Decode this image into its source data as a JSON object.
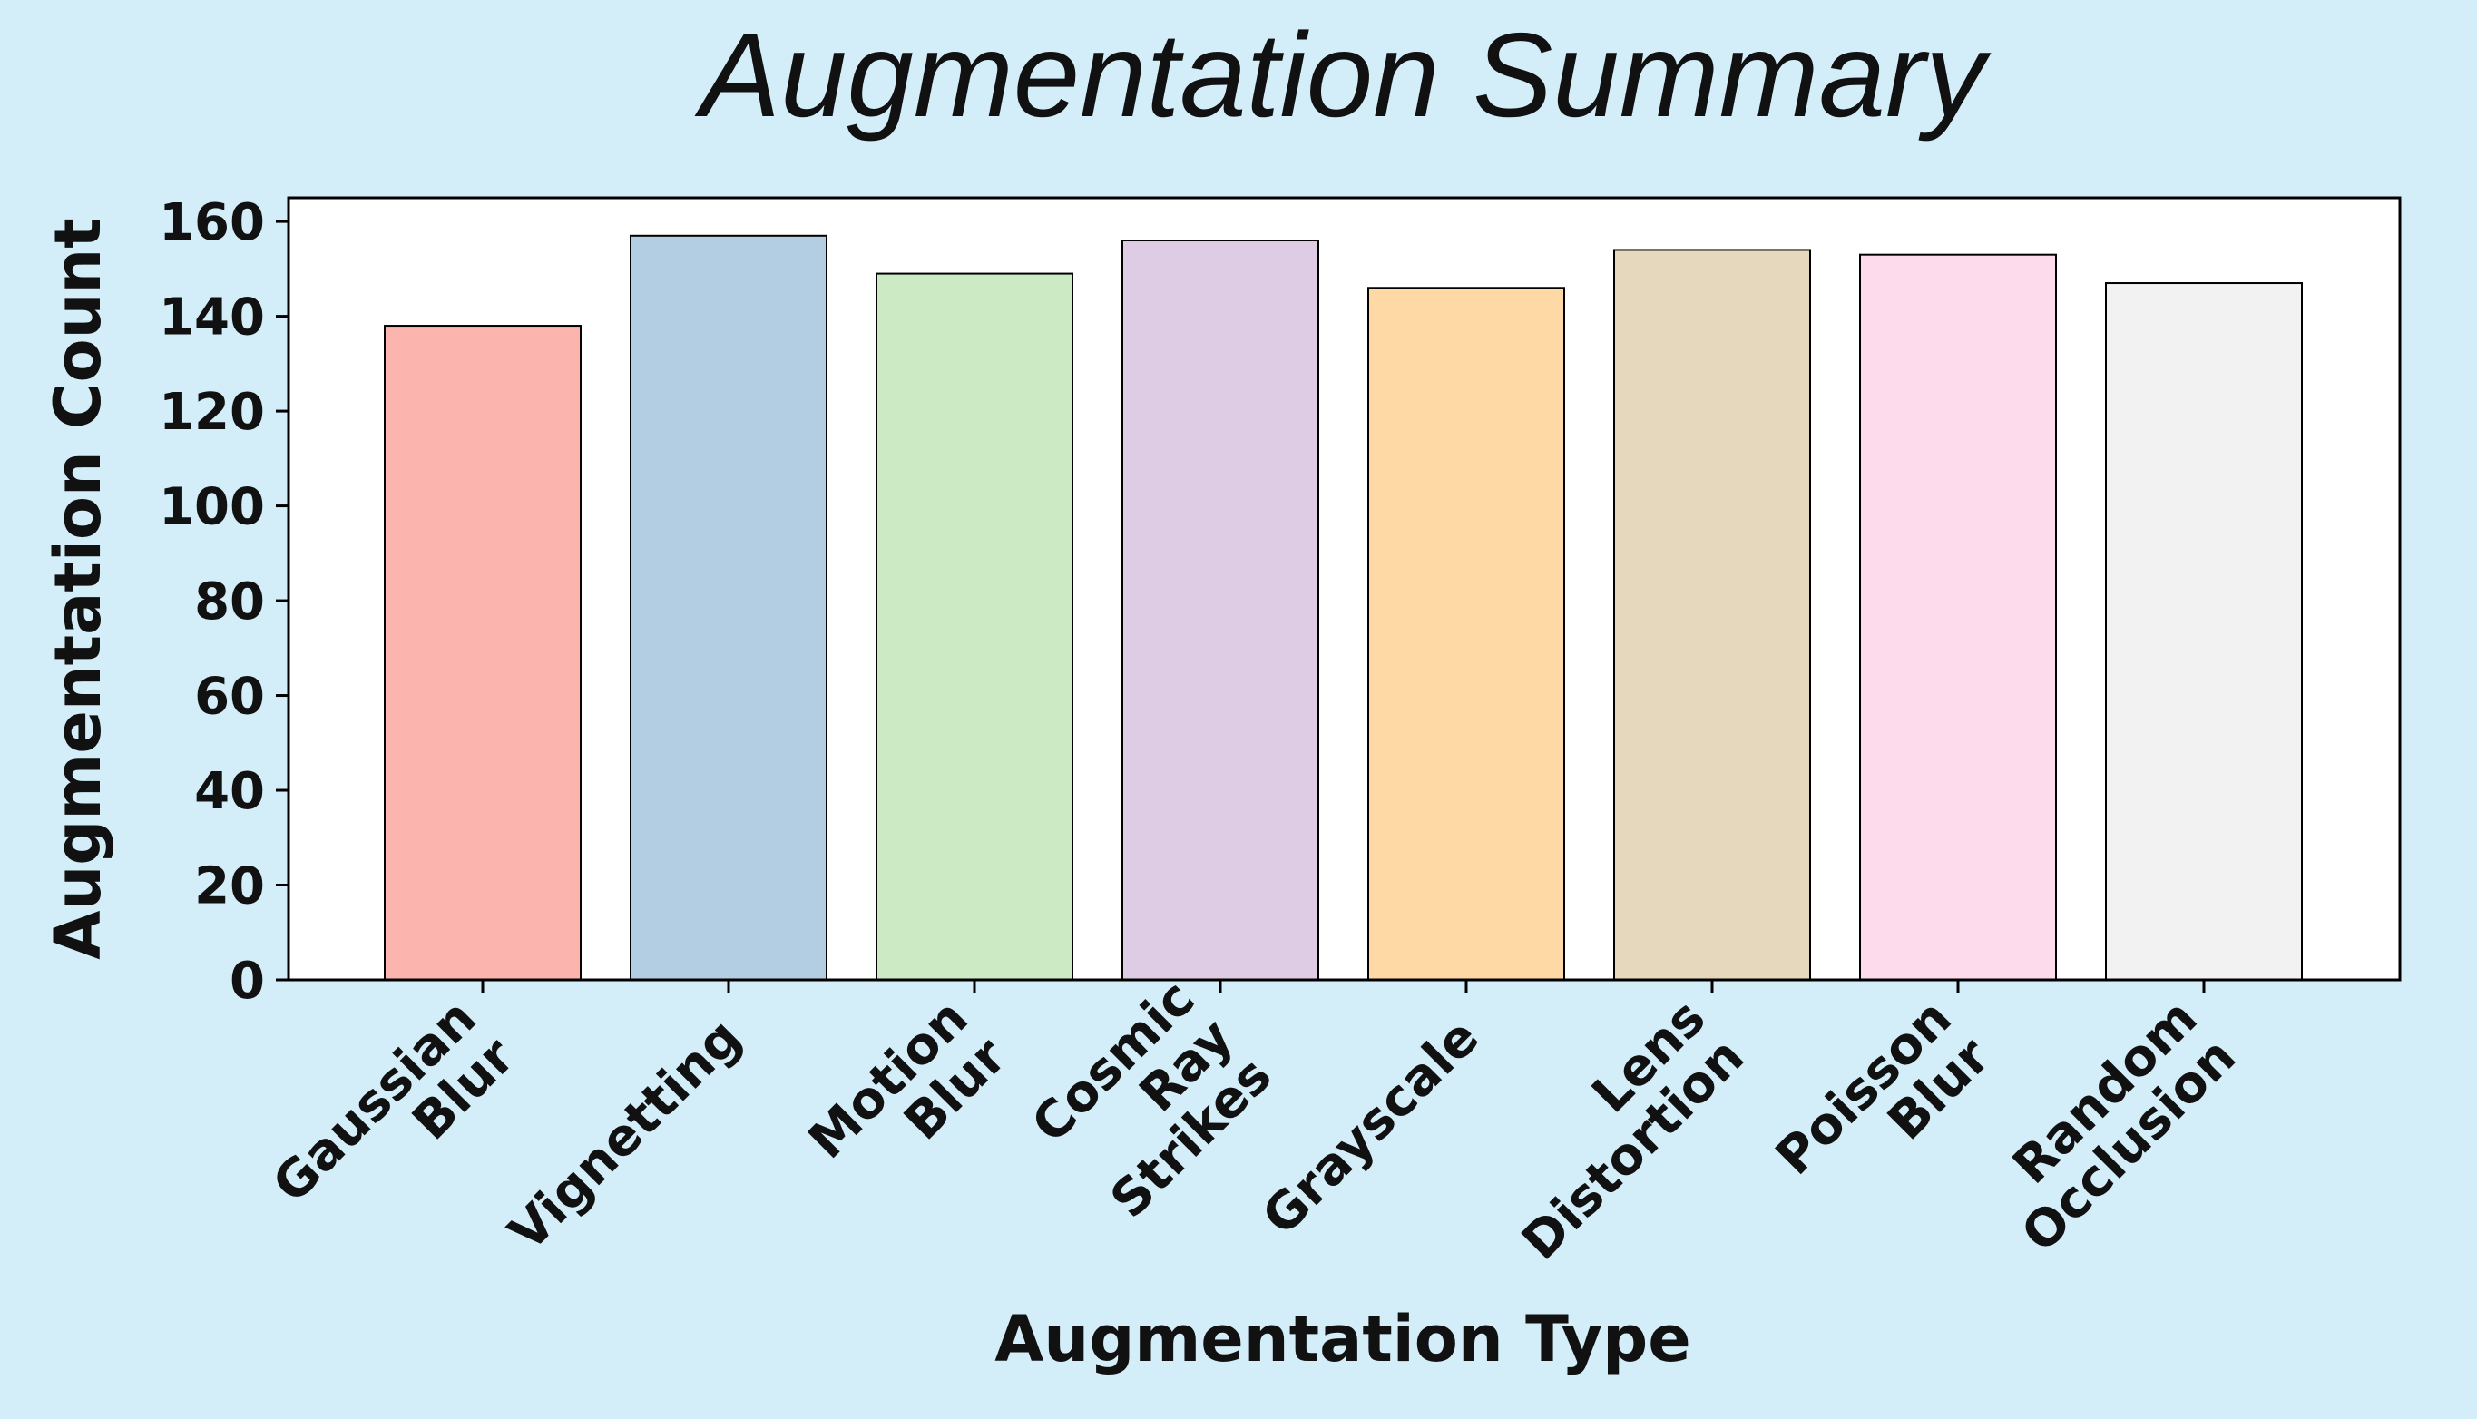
{
  "chart_data": {
    "type": "bar",
    "title": "Augmentation Summary",
    "xlabel": "Augmentation Type",
    "ylabel": "Augmentation Count",
    "ylim": [
      0,
      160
    ],
    "yticks": [
      0,
      20,
      40,
      60,
      80,
      100,
      120,
      140,
      160
    ],
    "y_tick_labels": [
      "0",
      "20",
      "40",
      "60",
      "80",
      "100",
      "120",
      "140",
      "160"
    ],
    "categories": [
      "Gaussian Blur",
      "Vignetting",
      "Motion Blur",
      "Cosmic Ray Strikes",
      "Grayscale",
      "Lens Distortion",
      "Poisson Blur",
      "Random Occlusion"
    ],
    "category_label_lines": [
      [
        "Gaussian",
        "Blur"
      ],
      [
        "Vignetting"
      ],
      [
        "Motion",
        "Blur"
      ],
      [
        "Cosmic",
        "Ray",
        "Strikes"
      ],
      [
        "Grayscale"
      ],
      [
        "Lens",
        "Distortion"
      ],
      [
        "Poisson",
        "Blur"
      ],
      [
        "Random",
        "Occlusion"
      ]
    ],
    "values": [
      138,
      157,
      149,
      156,
      146,
      154,
      153,
      147
    ],
    "colors": [
      "#fbb4ae",
      "#b3cde3",
      "#ccebc5",
      "#decbe4",
      "#fed9a6",
      "#e5d8bd",
      "#fddaec",
      "#f2f2f2"
    ],
    "grid": false,
    "legend": "none",
    "background_color": "#d4eef9",
    "plot_background_color": "#ffffff"
  }
}
